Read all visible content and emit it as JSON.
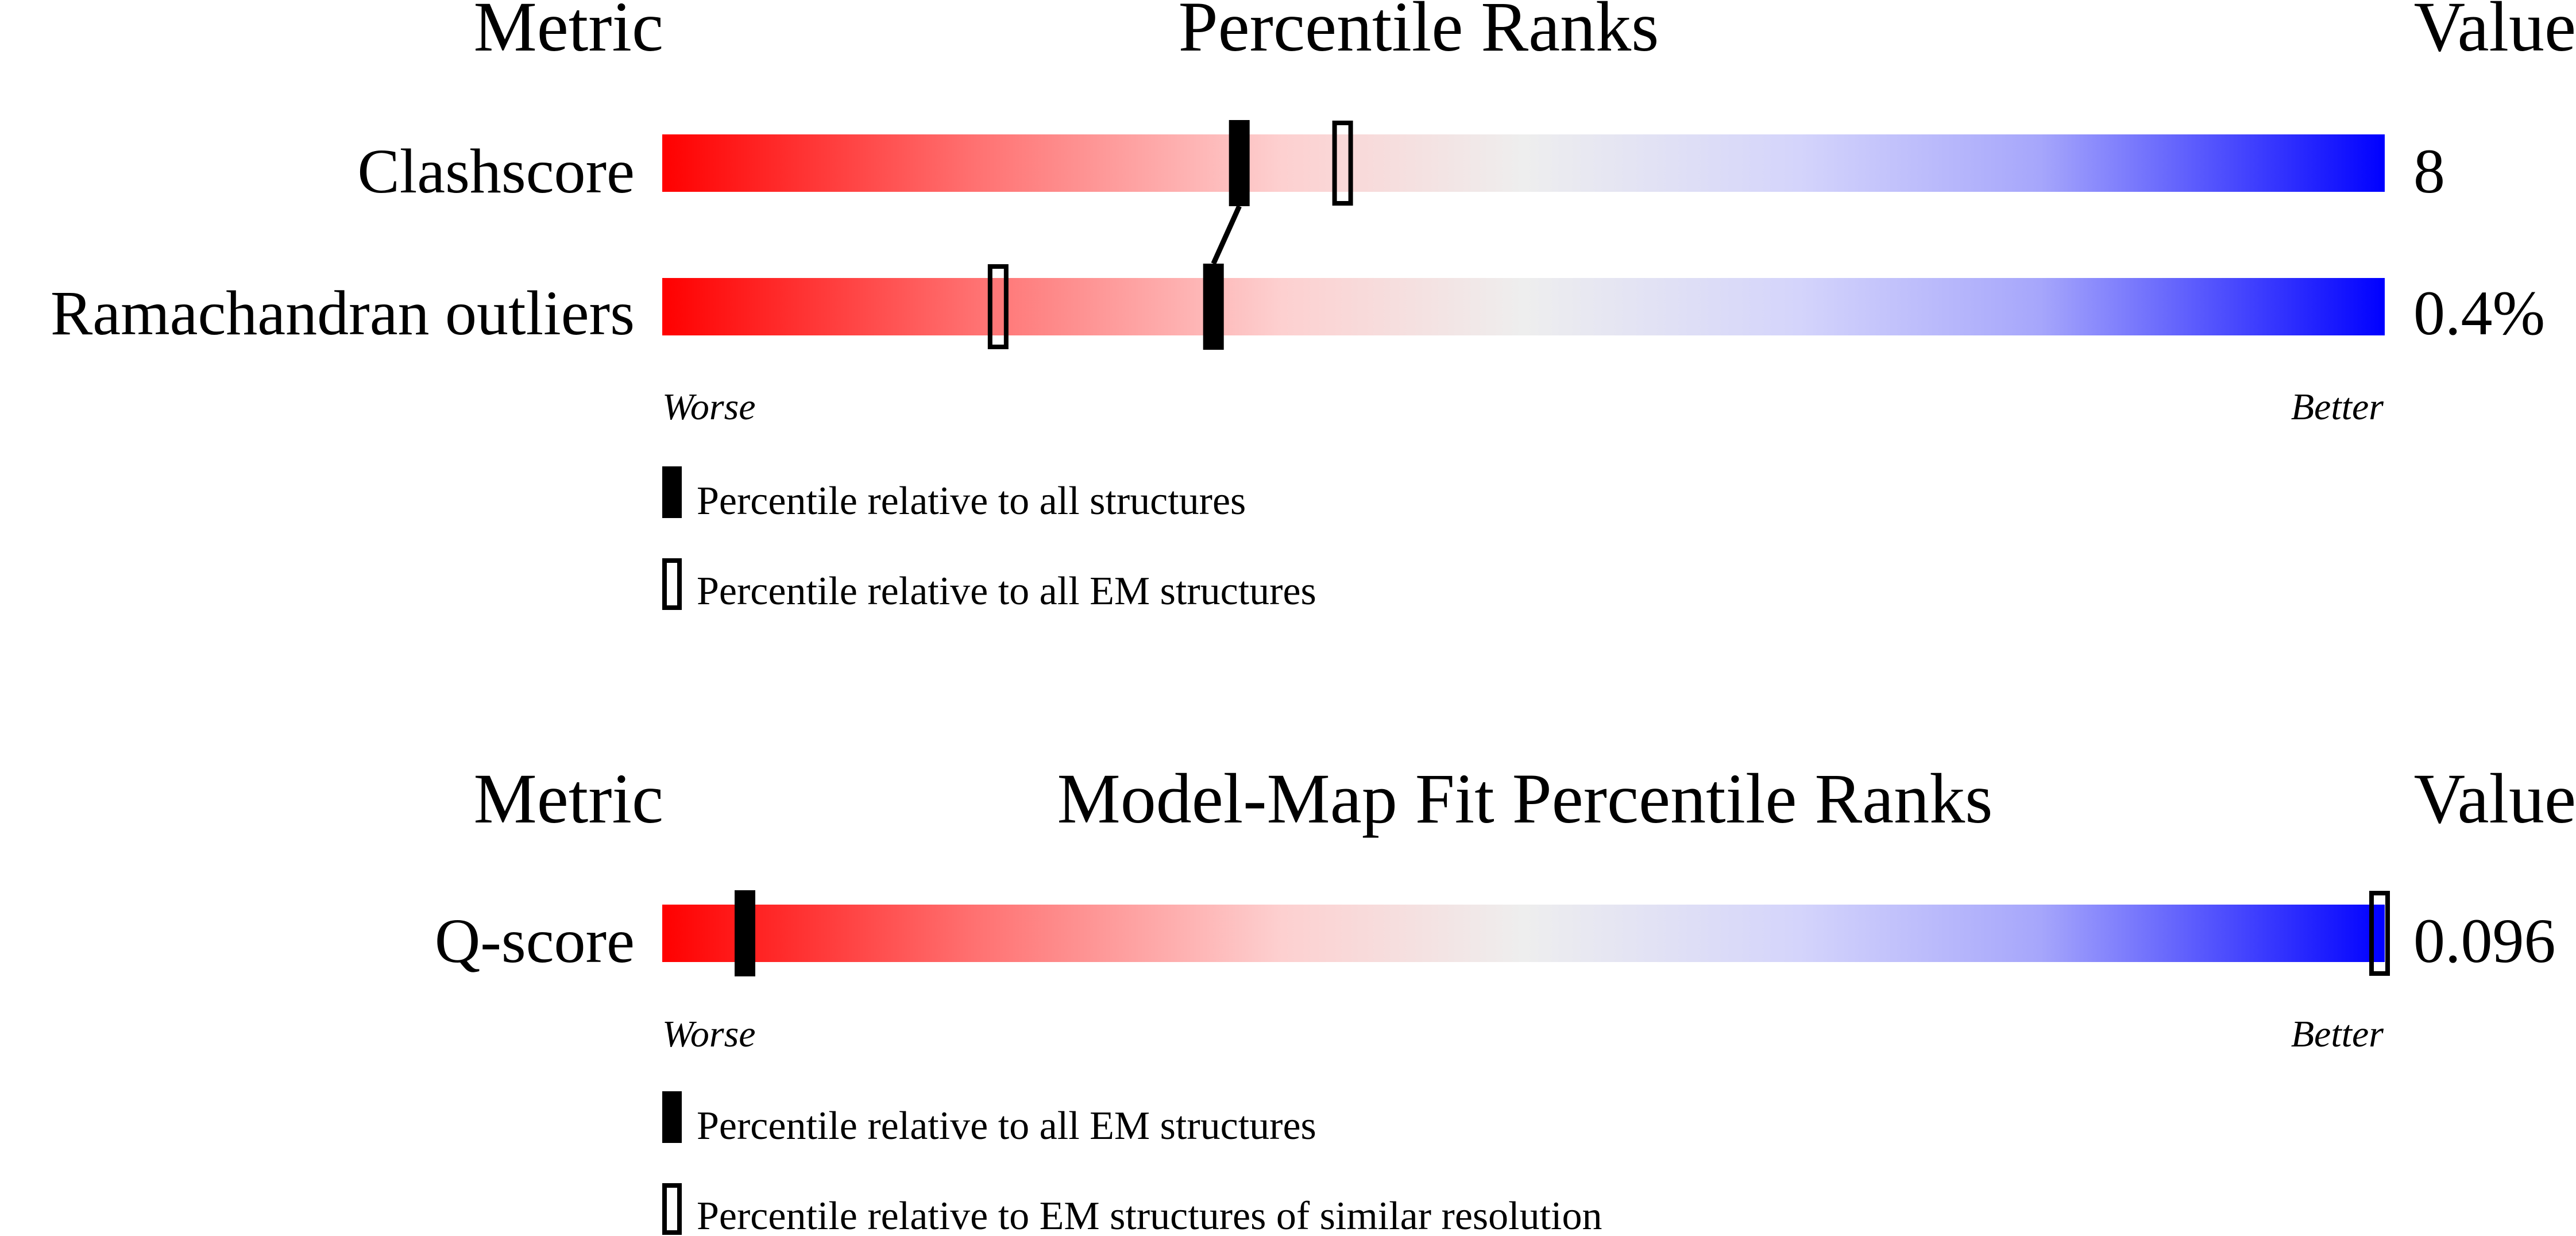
{
  "chart_data": [
    {
      "type": "percentile-slider",
      "header": {
        "metric": "Metric",
        "title": "Percentile Ranks",
        "value": "Value"
      },
      "rows": [
        {
          "metric": "Clashscore",
          "value": "8",
          "percentile_all": 33.5,
          "percentile_em": 39.5
        },
        {
          "metric": "Ramachandran outliers",
          "value": "0.4%",
          "percentile_all": 32.0,
          "percentile_em": 19.5
        }
      ],
      "scale": {
        "min": 0,
        "max": 100,
        "left_label": "Worse",
        "right_label": "Better"
      },
      "legend": {
        "filled": "Percentile relative to all structures",
        "hollow": "Percentile relative to all EM structures"
      }
    },
    {
      "type": "percentile-slider",
      "header": {
        "metric": "Metric",
        "title": "Model-Map Fit Percentile Ranks",
        "value": "Value"
      },
      "rows": [
        {
          "metric": "Q-score",
          "value": "0.096",
          "percentile_all": 4.8,
          "percentile_em": 99.7
        }
      ],
      "scale": {
        "min": 0,
        "max": 100,
        "left_label": "Worse",
        "right_label": "Better"
      },
      "legend": {
        "filled": "Percentile relative to all EM structures",
        "hollow": "Percentile relative to EM structures of similar resolution"
      }
    }
  ]
}
